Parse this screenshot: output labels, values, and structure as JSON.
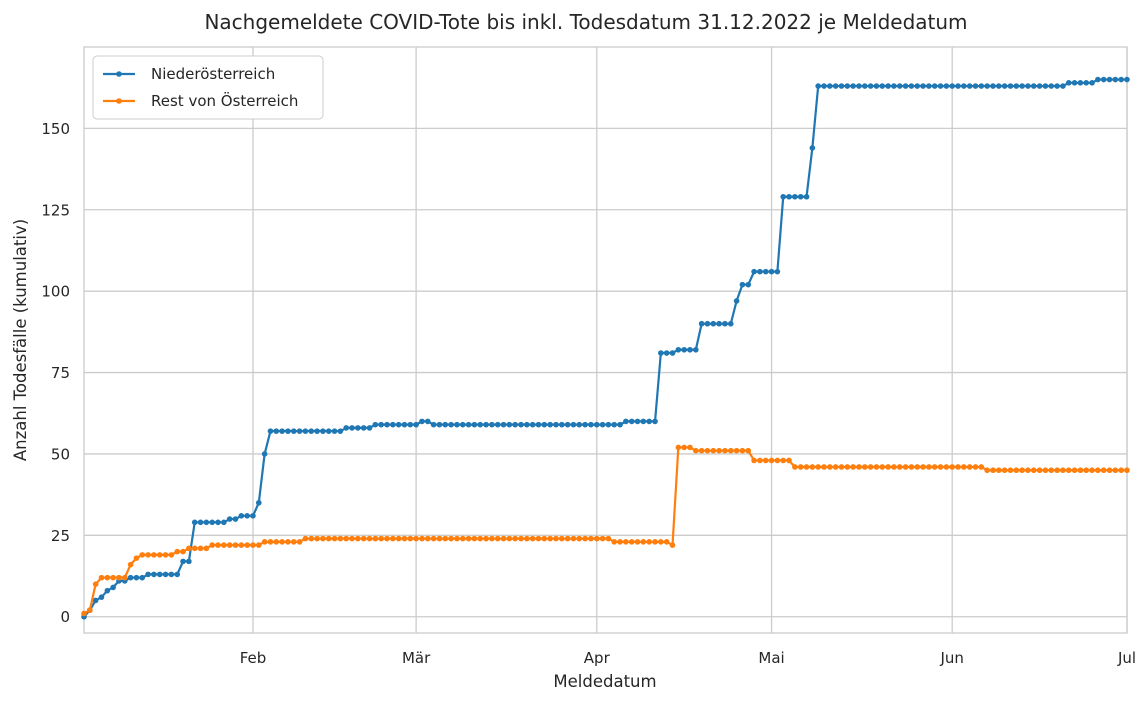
{
  "chart_data": {
    "type": "line",
    "title": "Nachgemeldete COVID-Tote bis inkl. Todesdatum 31.12.2022 je Meldedatum",
    "xlabel": "Meldedatum",
    "ylabel": "Anzahl Todesfälle (kumulativ)",
    "x_start_date": "2023-01-02",
    "xlim_days": [
      0,
      179
    ],
    "x_ticks": [
      {
        "day": 29,
        "label": "Feb"
      },
      {
        "day": 57,
        "label": "Mär"
      },
      {
        "day": 88,
        "label": "Apr"
      },
      {
        "day": 118,
        "label": "Mai"
      },
      {
        "day": 149,
        "label": "Jun"
      },
      {
        "day": 179,
        "label": "Jul"
      }
    ],
    "ylim": [
      -5,
      175
    ],
    "y_ticks": [
      0,
      25,
      50,
      75,
      100,
      125,
      150
    ],
    "grid": true,
    "legend_position": "top-left",
    "series": [
      {
        "name": "Niederösterreich",
        "color": "#1f77b4",
        "steps": [
          [
            0,
            0
          ],
          [
            1,
            2
          ],
          [
            2,
            5
          ],
          [
            3,
            6
          ],
          [
            4,
            8
          ],
          [
            5,
            9
          ],
          [
            6,
            11
          ],
          [
            8,
            12
          ],
          [
            11,
            13
          ],
          [
            17,
            17
          ],
          [
            19,
            29
          ],
          [
            25,
            30
          ],
          [
            27,
            31
          ],
          [
            30,
            35
          ],
          [
            31,
            50
          ],
          [
            32,
            57
          ],
          [
            45,
            58
          ],
          [
            50,
            59
          ],
          [
            58,
            60
          ],
          [
            60,
            59
          ],
          [
            93,
            60
          ],
          [
            99,
            81
          ],
          [
            102,
            82
          ],
          [
            106,
            90
          ],
          [
            112,
            97
          ],
          [
            113,
            102
          ],
          [
            115,
            106
          ],
          [
            120,
            129
          ],
          [
            125,
            144
          ],
          [
            126,
            163
          ],
          [
            169,
            164
          ],
          [
            174,
            165
          ]
        ],
        "last_day": 179
      },
      {
        "name": "Rest von Österreich",
        "color": "#ff7f0e",
        "steps": [
          [
            0,
            1
          ],
          [
            1,
            2
          ],
          [
            2,
            10
          ],
          [
            3,
            12
          ],
          [
            8,
            16
          ],
          [
            9,
            18
          ],
          [
            10,
            19
          ],
          [
            16,
            20
          ],
          [
            18,
            21
          ],
          [
            22,
            22
          ],
          [
            31,
            23
          ],
          [
            38,
            24
          ],
          [
            91,
            23
          ],
          [
            101,
            22
          ],
          [
            102,
            52
          ],
          [
            105,
            51
          ],
          [
            115,
            48
          ],
          [
            122,
            46
          ],
          [
            155,
            45
          ]
        ],
        "last_day": 179
      }
    ]
  }
}
